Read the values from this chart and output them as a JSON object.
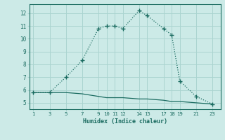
{
  "x": [
    1,
    3,
    5,
    7,
    9,
    10,
    11,
    12,
    14,
    15,
    17,
    18,
    19,
    21,
    23
  ],
  "y_upper": [
    5.8,
    5.8,
    7.0,
    8.3,
    10.8,
    11.0,
    11.0,
    10.8,
    12.2,
    11.8,
    10.8,
    10.3,
    6.7,
    5.5,
    4.9
  ],
  "y_lower": [
    5.8,
    5.8,
    5.8,
    5.7,
    5.5,
    5.4,
    5.4,
    5.4,
    5.3,
    5.3,
    5.2,
    5.1,
    5.1,
    5.0,
    4.9
  ],
  "line_color": "#1a6b60",
  "bg_color": "#cceae7",
  "grid_color": "#aad4d0",
  "xlabel": "Humidex (Indice chaleur)",
  "xlim": [
    0.5,
    24
  ],
  "ylim": [
    4.5,
    12.7
  ],
  "xticks": [
    1,
    3,
    5,
    7,
    9,
    10,
    11,
    12,
    14,
    15,
    17,
    18,
    19,
    21,
    23
  ],
  "yticks": [
    5,
    6,
    7,
    8,
    9,
    10,
    11,
    12
  ]
}
